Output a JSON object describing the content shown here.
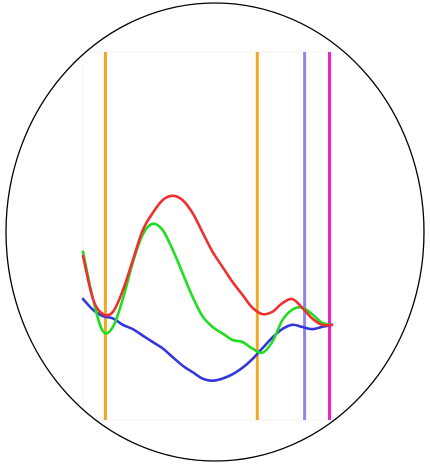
{
  "chart_data": {
    "type": "line",
    "title": "",
    "xlabel": "",
    "ylabel": "",
    "grid": false,
    "xlim": [
      0,
      100
    ],
    "ylim": [
      0,
      100
    ],
    "series": [
      {
        "color": "#ee3030",
        "x": [
          0,
          4,
          8,
          12,
          16,
          20,
          24,
          28,
          32,
          36,
          40,
          44,
          48,
          52,
          56,
          60,
          64,
          68,
          72,
          76,
          80,
          84,
          88,
          92,
          96,
          100
        ],
        "y": [
          60,
          40,
          33,
          34,
          44,
          58,
          72,
          80,
          86,
          88,
          86,
          80,
          71,
          62,
          55,
          48,
          42,
          36,
          33,
          34,
          38,
          40,
          36,
          31,
          28,
          28
        ]
      },
      {
        "color": "#20dd20",
        "x": [
          0,
          4,
          8,
          12,
          16,
          20,
          24,
          28,
          32,
          36,
          40,
          44,
          48,
          52,
          56,
          60,
          64,
          68,
          72,
          76,
          80,
          84,
          88,
          92,
          96,
          100
        ],
        "y": [
          62,
          40,
          25,
          27,
          40,
          57,
          70,
          75,
          72,
          63,
          52,
          41,
          32,
          27,
          24,
          21,
          20,
          17,
          15,
          20,
          30,
          35,
          36,
          33,
          29,
          28
        ]
      },
      {
        "color": "#3535dd",
        "x": [
          0,
          4,
          8,
          12,
          16,
          20,
          24,
          28,
          32,
          36,
          40,
          44,
          48,
          52,
          56,
          60,
          64,
          68,
          72,
          76,
          80,
          84,
          88,
          92,
          96,
          100
        ],
        "y": [
          40,
          35,
          32,
          31,
          28,
          26,
          23,
          20,
          17,
          13,
          9,
          6,
          3,
          2,
          3,
          5,
          8,
          12,
          17,
          22,
          26,
          28,
          27,
          26,
          27,
          28
        ]
      }
    ],
    "vertical_lines": [
      {
        "x": 9,
        "color": "#f5a623"
      },
      {
        "x": 70,
        "color": "#f5a623"
      },
      {
        "x": 89,
        "color": "#8888ee"
      },
      {
        "x": 99,
        "color": "#ee22cc"
      }
    ]
  }
}
